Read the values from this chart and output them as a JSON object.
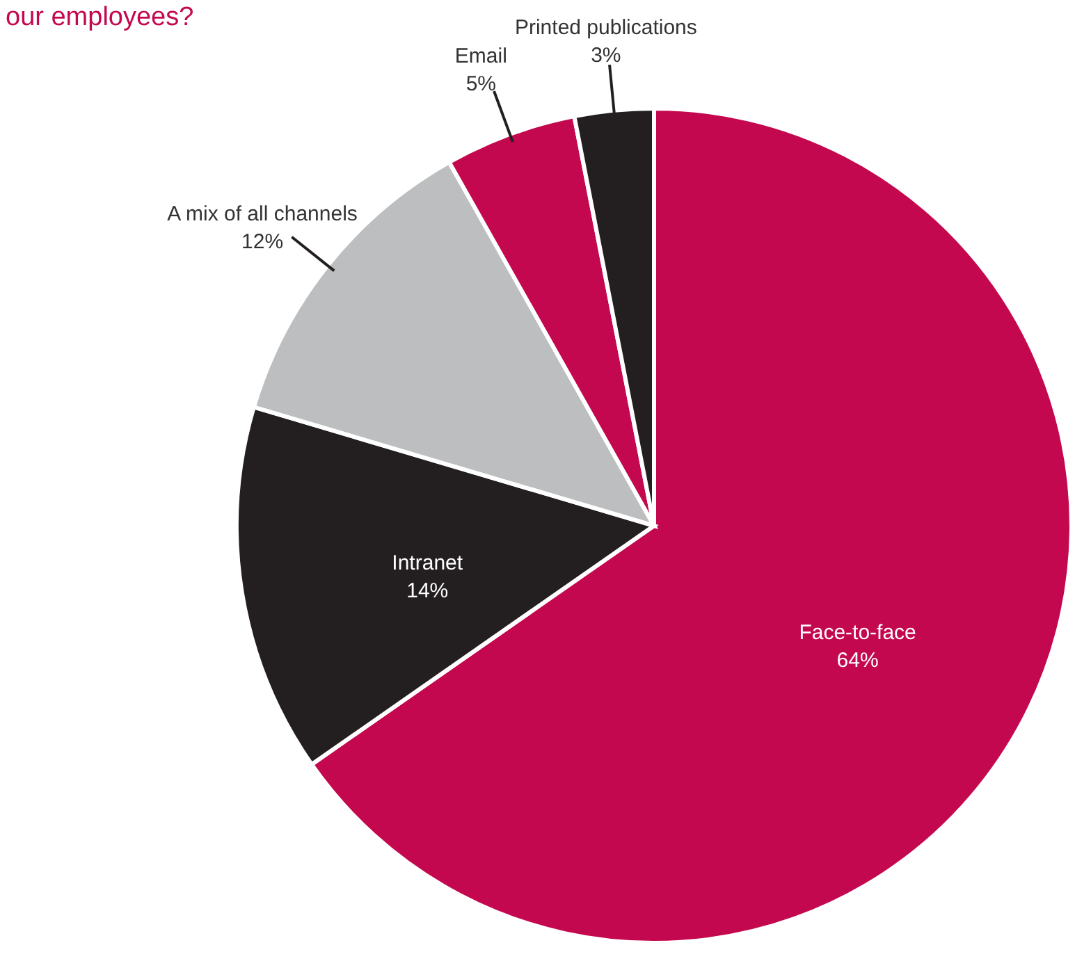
{
  "chart_data": {
    "type": "pie",
    "title": "our employees?",
    "categories": [
      "Face-to-face",
      "Intranet",
      "A mix of all channels",
      "Email",
      "Printed publications"
    ],
    "values": [
      64,
      14,
      12,
      5,
      3
    ],
    "value_labels": [
      "64%",
      "14%",
      "12%",
      "5%",
      "3%"
    ],
    "colors": [
      "#c4084f",
      "#231f20",
      "#bcbec0",
      "#c4084f",
      "#231f20"
    ]
  }
}
